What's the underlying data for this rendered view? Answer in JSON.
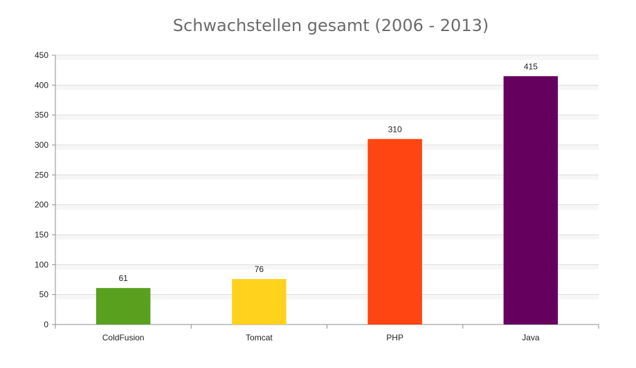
{
  "chart_data": {
    "type": "bar",
    "title": "Schwachstellen gesamt (2006 - 2013)",
    "categories": [
      "ColdFusion",
      "Tomcat",
      "PHP",
      "Java"
    ],
    "values": [
      61,
      76,
      310,
      415
    ],
    "colors": [
      "#58a01e",
      "#ffd21e",
      "#ff4511",
      "#65005f"
    ],
    "ylim": [
      0,
      450
    ],
    "yticks": [
      0,
      50,
      100,
      150,
      200,
      250,
      300,
      350,
      400,
      450
    ],
    "xlabel": "",
    "ylabel": "",
    "grid": true,
    "data_labels": true,
    "legend": "none"
  }
}
